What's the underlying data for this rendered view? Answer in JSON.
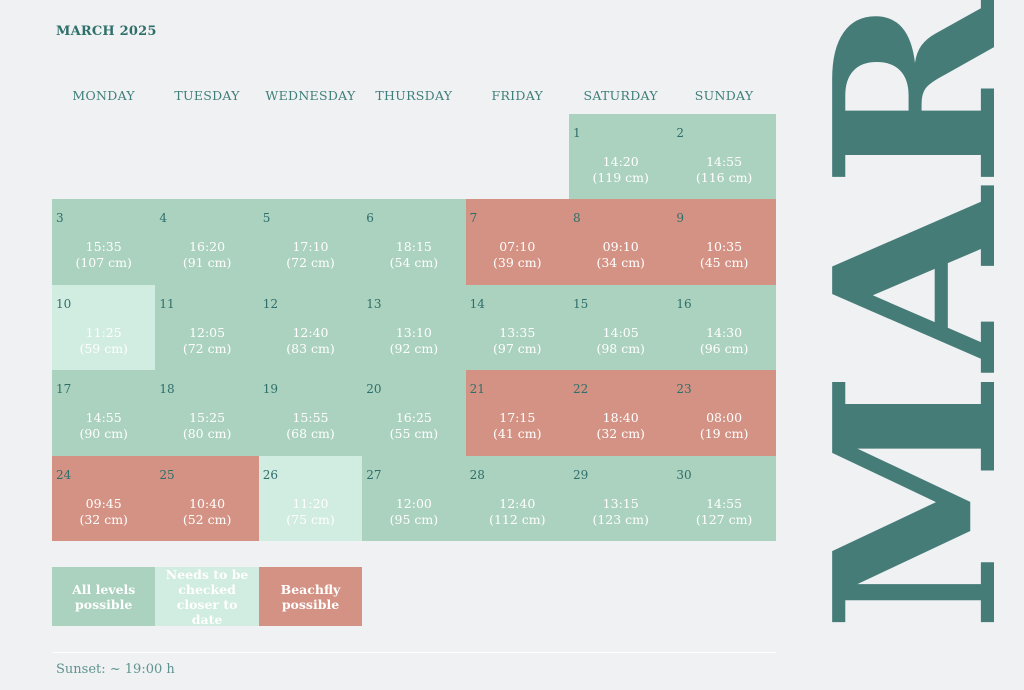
{
  "header": {
    "month_title": "MARCH 2025"
  },
  "weekdays": [
    "MONDAY",
    "TUESDAY",
    "WEDNESDAY",
    "THURSDAY",
    "FRIDAY",
    "SATURDAY",
    "SUNDAY"
  ],
  "colors": {
    "all_levels": "#abd1bf",
    "check_later": "#d1ece1",
    "beachfly": "#d49284",
    "accent": "#467c78"
  },
  "days": [
    {
      "day": "1",
      "time": "14:20",
      "height": "(119 cm)",
      "status": "green",
      "col": 5,
      "row": 0
    },
    {
      "day": "2",
      "time": "14:55",
      "height": "(116 cm)",
      "status": "green",
      "col": 6,
      "row": 0
    },
    {
      "day": "3",
      "time": "15:35",
      "height": "(107 cm)",
      "status": "green",
      "col": 0,
      "row": 1
    },
    {
      "day": "4",
      "time": "16:20",
      "height": "(91 cm)",
      "status": "green",
      "col": 1,
      "row": 1
    },
    {
      "day": "5",
      "time": "17:10",
      "height": "(72 cm)",
      "status": "green",
      "col": 2,
      "row": 1
    },
    {
      "day": "6",
      "time": "18:15",
      "height": "(54 cm)",
      "status": "green",
      "col": 3,
      "row": 1
    },
    {
      "day": "7",
      "time": "07:10",
      "height": "(39 cm)",
      "status": "red",
      "col": 4,
      "row": 1
    },
    {
      "day": "8",
      "time": "09:10",
      "height": "(34 cm)",
      "status": "red",
      "col": 5,
      "row": 1
    },
    {
      "day": "9",
      "time": "10:35",
      "height": "(45 cm)",
      "status": "red",
      "col": 6,
      "row": 1
    },
    {
      "day": "10",
      "time": "11:25",
      "height": "(59 cm)",
      "status": "light",
      "col": 0,
      "row": 2
    },
    {
      "day": "11",
      "time": "12:05",
      "height": "(72 cm)",
      "status": "green",
      "col": 1,
      "row": 2
    },
    {
      "day": "12",
      "time": "12:40",
      "height": "(83 cm)",
      "status": "green",
      "col": 2,
      "row": 2
    },
    {
      "day": "13",
      "time": "13:10",
      "height": "(92 cm)",
      "status": "green",
      "col": 3,
      "row": 2
    },
    {
      "day": "14",
      "time": "13:35",
      "height": "(97 cm)",
      "status": "green",
      "col": 4,
      "row": 2
    },
    {
      "day": "15",
      "time": "14:05",
      "height": "(98 cm)",
      "status": "green",
      "col": 5,
      "row": 2
    },
    {
      "day": "16",
      "time": "14:30",
      "height": "(96 cm)",
      "status": "green",
      "col": 6,
      "row": 2
    },
    {
      "day": "17",
      "time": "14:55",
      "height": "(90 cm)",
      "status": "green",
      "col": 0,
      "row": 3
    },
    {
      "day": "18",
      "time": "15:25",
      "height": "(80 cm)",
      "status": "green",
      "col": 1,
      "row": 3
    },
    {
      "day": "19",
      "time": "15:55",
      "height": "(68 cm)",
      "status": "green",
      "col": 2,
      "row": 3
    },
    {
      "day": "20",
      "time": "16:25",
      "height": "(55 cm)",
      "status": "green",
      "col": 3,
      "row": 3
    },
    {
      "day": "21",
      "time": "17:15",
      "height": "(41 cm)",
      "status": "red",
      "col": 4,
      "row": 3
    },
    {
      "day": "22",
      "time": "18:40",
      "height": "(32 cm)",
      "status": "red",
      "col": 5,
      "row": 3
    },
    {
      "day": "23",
      "time": "08:00",
      "height": "(19 cm)",
      "status": "red",
      "col": 6,
      "row": 3
    },
    {
      "day": "24",
      "time": "09:45",
      "height": "(32 cm)",
      "status": "red",
      "col": 0,
      "row": 4
    },
    {
      "day": "25",
      "time": "10:40",
      "height": "(52 cm)",
      "status": "red",
      "col": 1,
      "row": 4
    },
    {
      "day": "26",
      "time": "11:20",
      "height": "(75 cm)",
      "status": "light",
      "col": 2,
      "row": 4
    },
    {
      "day": "27",
      "time": "12:00",
      "height": "(95 cm)",
      "status": "green",
      "col": 3,
      "row": 4
    },
    {
      "day": "28",
      "time": "12:40",
      "height": "(112 cm)",
      "status": "green",
      "col": 4,
      "row": 4
    },
    {
      "day": "29",
      "time": "13:15",
      "height": "(123 cm)",
      "status": "green",
      "col": 5,
      "row": 4
    },
    {
      "day": "30",
      "time": "14:55",
      "height": "(127 cm)",
      "status": "green",
      "col": 6,
      "row": 4
    }
  ],
  "legend": {
    "all_levels": "All levels possible",
    "check_later": "Needs to be checked closer to date",
    "beachfly": "Beachfly possible"
  },
  "footer": {
    "sunset": "Sunset: ~ 19:00 h"
  },
  "side_label": "MAR"
}
